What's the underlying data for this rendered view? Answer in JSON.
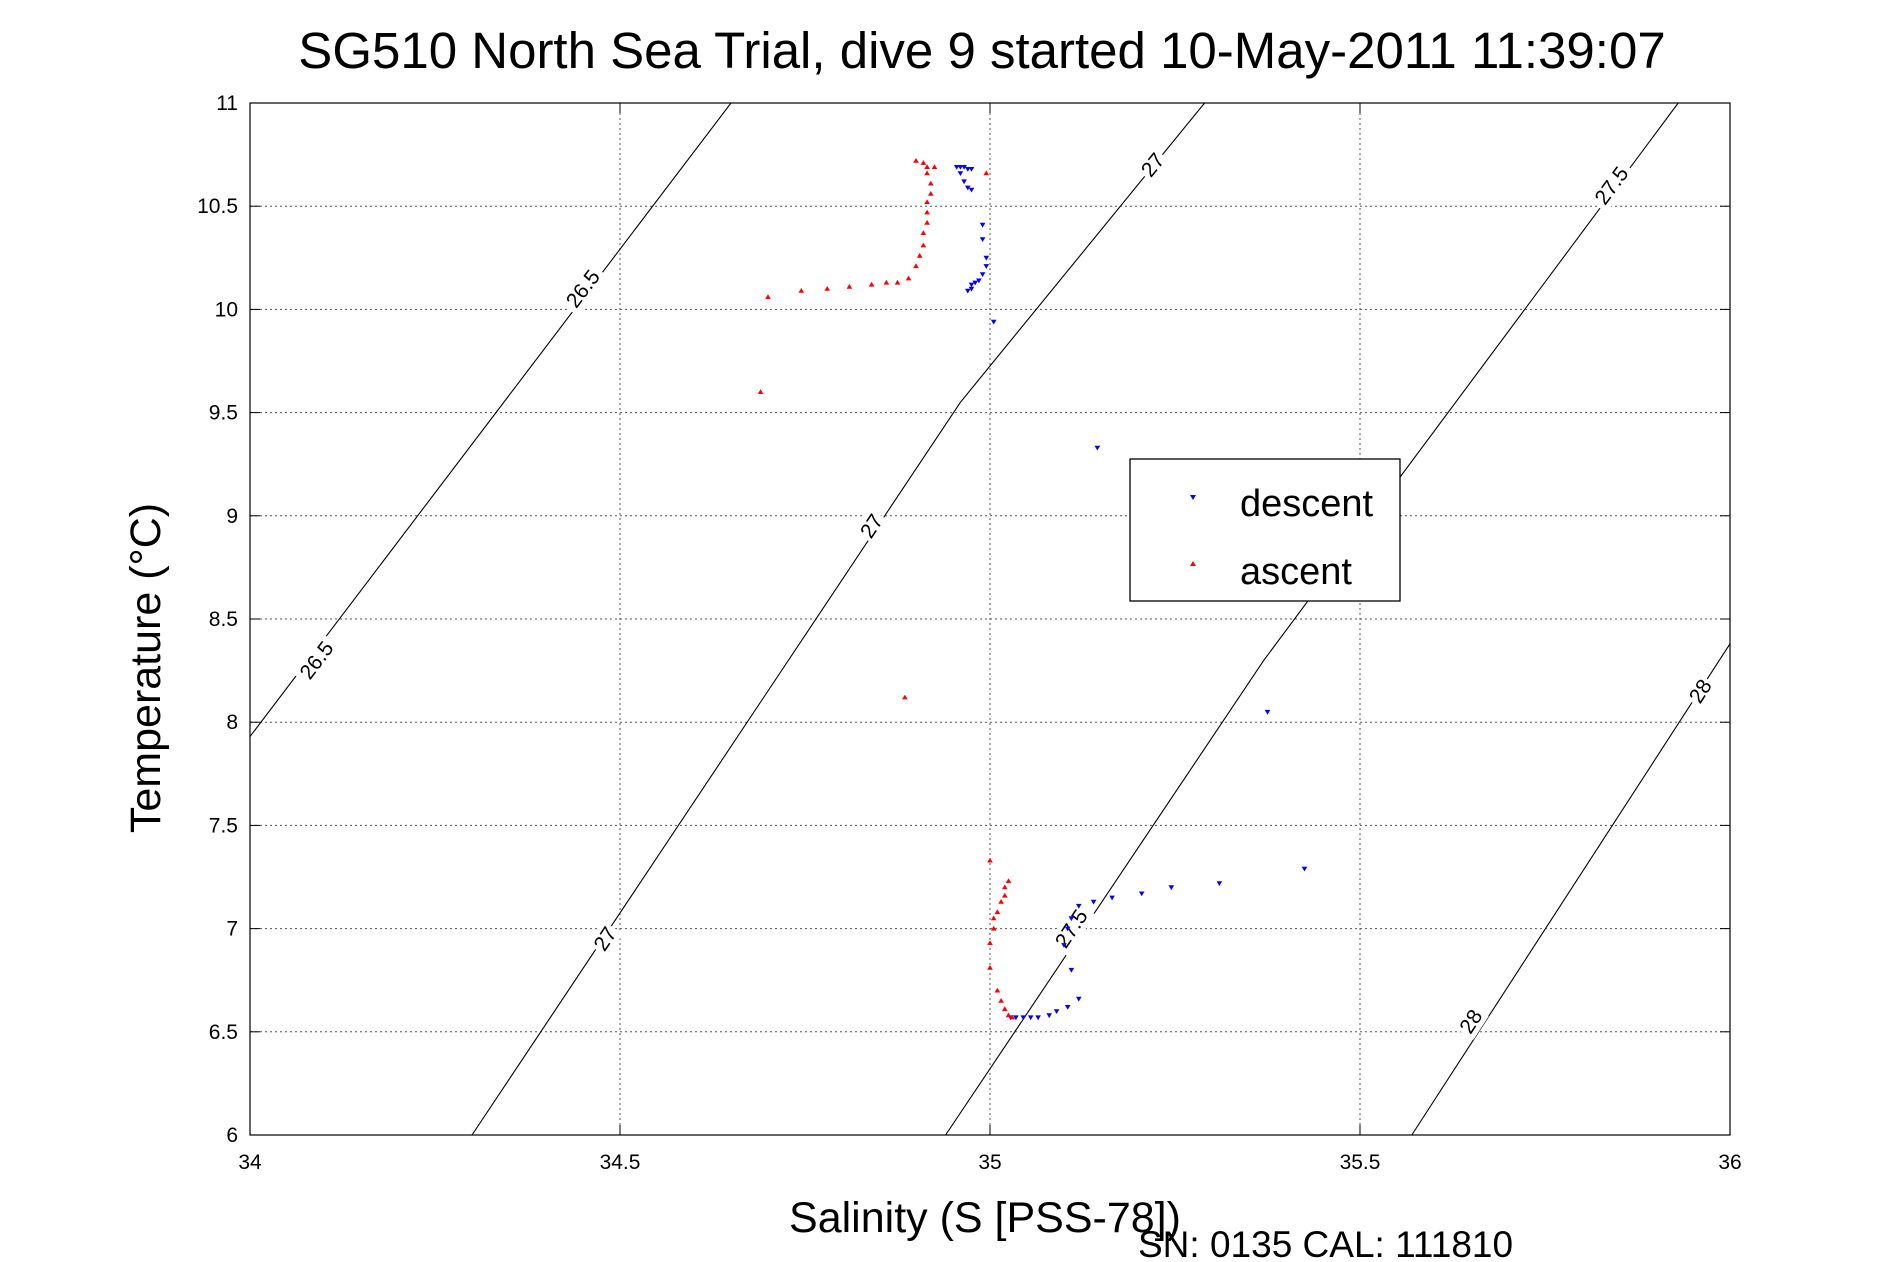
{
  "chart_data": {
    "type": "scatter",
    "title": "SG510 North Sea Trial, dive 9 started 10-May-2011 11:39:07",
    "xlabel": "Salinity (S [PSS-78])",
    "ylabel": "Temperature (°C)",
    "xlim": [
      34,
      36
    ],
    "ylim": [
      6,
      11
    ],
    "xticks": [
      34,
      34.5,
      35,
      35.5,
      36
    ],
    "xtick_labels": [
      "34",
      "34.5",
      "35",
      "35.5",
      "36"
    ],
    "yticks": [
      6,
      6.5,
      7,
      7.5,
      8,
      8.5,
      9,
      9.5,
      10,
      10.5,
      11
    ],
    "ytick_labels": [
      "6",
      "6.5",
      "7",
      "7.5",
      "8",
      "8.5",
      "9",
      "9.5",
      "10",
      "10.5",
      "11"
    ],
    "grid": true,
    "legend_position": "center-right",
    "footer": "SN: 0135  CAL: 111810",
    "contours": [
      {
        "label": "26.5",
        "points": [
          [
            34.0,
            7.93
          ],
          [
            34.65,
            11.0
          ]
        ],
        "label_positions": [
          [
            34.09,
            8.3
          ],
          [
            34.45,
            10.1
          ]
        ]
      },
      {
        "label": "27",
        "points": [
          [
            34.3,
            6.0
          ],
          [
            34.96,
            9.55
          ],
          [
            35.29,
            11.0
          ]
        ],
        "label_positions": [
          [
            34.48,
            6.95
          ],
          [
            34.84,
            8.95
          ],
          [
            35.22,
            10.7
          ]
        ]
      },
      {
        "label": "27.5",
        "points": [
          [
            34.94,
            6.0
          ],
          [
            35.37,
            8.3
          ],
          [
            35.93,
            11.0
          ]
        ],
        "label_positions": [
          [
            35.11,
            7.0
          ],
          [
            35.84,
            10.6
          ]
        ]
      },
      {
        "label": "28",
        "points": [
          [
            35.57,
            6.0
          ],
          [
            36.0,
            8.38
          ]
        ],
        "label_positions": [
          [
            35.65,
            6.55
          ],
          [
            35.96,
            8.15
          ]
        ]
      }
    ],
    "series": [
      {
        "name": "descent",
        "color": "#0000ff",
        "marker": "triangle-down",
        "points": [
          [
            34.955,
            10.69
          ],
          [
            34.96,
            10.69
          ],
          [
            34.965,
            10.69
          ],
          [
            34.97,
            10.68
          ],
          [
            34.975,
            10.68
          ],
          [
            34.96,
            10.66
          ],
          [
            34.965,
            10.62
          ],
          [
            34.97,
            10.59
          ],
          [
            34.975,
            10.58
          ],
          [
            34.99,
            10.41
          ],
          [
            34.99,
            10.34
          ],
          [
            34.995,
            10.25
          ],
          [
            34.995,
            10.21
          ],
          [
            34.99,
            10.17
          ],
          [
            34.985,
            10.14
          ],
          [
            34.98,
            10.13
          ],
          [
            34.975,
            10.12
          ],
          [
            34.975,
            10.1
          ],
          [
            34.97,
            10.09
          ],
          [
            35.005,
            9.94
          ],
          [
            35.145,
            9.33
          ],
          [
            35.375,
            8.05
          ],
          [
            35.425,
            7.29
          ],
          [
            35.31,
            7.22
          ],
          [
            35.245,
            7.2
          ],
          [
            35.205,
            7.17
          ],
          [
            35.165,
            7.15
          ],
          [
            35.14,
            7.13
          ],
          [
            35.12,
            7.11
          ],
          [
            35.11,
            7.05
          ],
          [
            35.105,
            7.0
          ],
          [
            35.1,
            6.92
          ],
          [
            35.11,
            6.8
          ],
          [
            35.12,
            6.66
          ],
          [
            35.105,
            6.62
          ],
          [
            35.09,
            6.6
          ],
          [
            35.08,
            6.58
          ],
          [
            35.065,
            6.57
          ],
          [
            35.055,
            6.57
          ],
          [
            35.045,
            6.57
          ],
          [
            35.035,
            6.57
          ],
          [
            35.028,
            6.57
          ]
        ]
      },
      {
        "name": "ascent",
        "color": "#ff0000",
        "marker": "triangle-up",
        "points": [
          [
            34.9,
            10.72
          ],
          [
            34.91,
            10.71
          ],
          [
            34.915,
            10.69
          ],
          [
            34.925,
            10.69
          ],
          [
            34.915,
            10.66
          ],
          [
            34.995,
            10.66
          ],
          [
            34.92,
            10.61
          ],
          [
            34.92,
            10.56
          ],
          [
            34.915,
            10.52
          ],
          [
            34.915,
            10.47
          ],
          [
            34.915,
            10.42
          ],
          [
            34.91,
            10.37
          ],
          [
            34.91,
            10.31
          ],
          [
            34.905,
            10.26
          ],
          [
            34.9,
            10.21
          ],
          [
            34.89,
            10.15
          ],
          [
            34.875,
            10.13
          ],
          [
            34.86,
            10.13
          ],
          [
            34.84,
            10.12
          ],
          [
            34.81,
            10.11
          ],
          [
            34.78,
            10.1
          ],
          [
            34.745,
            10.09
          ],
          [
            34.7,
            10.06
          ],
          [
            34.69,
            9.6
          ],
          [
            34.885,
            8.12
          ],
          [
            35.0,
            7.33
          ],
          [
            35.025,
            7.23
          ],
          [
            35.02,
            7.2
          ],
          [
            35.02,
            7.16
          ],
          [
            35.015,
            7.13
          ],
          [
            35.01,
            7.08
          ],
          [
            35.005,
            7.05
          ],
          [
            35.005,
            7.0
          ],
          [
            35.0,
            6.93
          ],
          [
            35.0,
            6.81
          ],
          [
            35.01,
            6.7
          ],
          [
            35.015,
            6.65
          ],
          [
            35.02,
            6.61
          ],
          [
            35.025,
            6.58
          ],
          [
            35.03,
            6.57
          ]
        ]
      }
    ]
  }
}
